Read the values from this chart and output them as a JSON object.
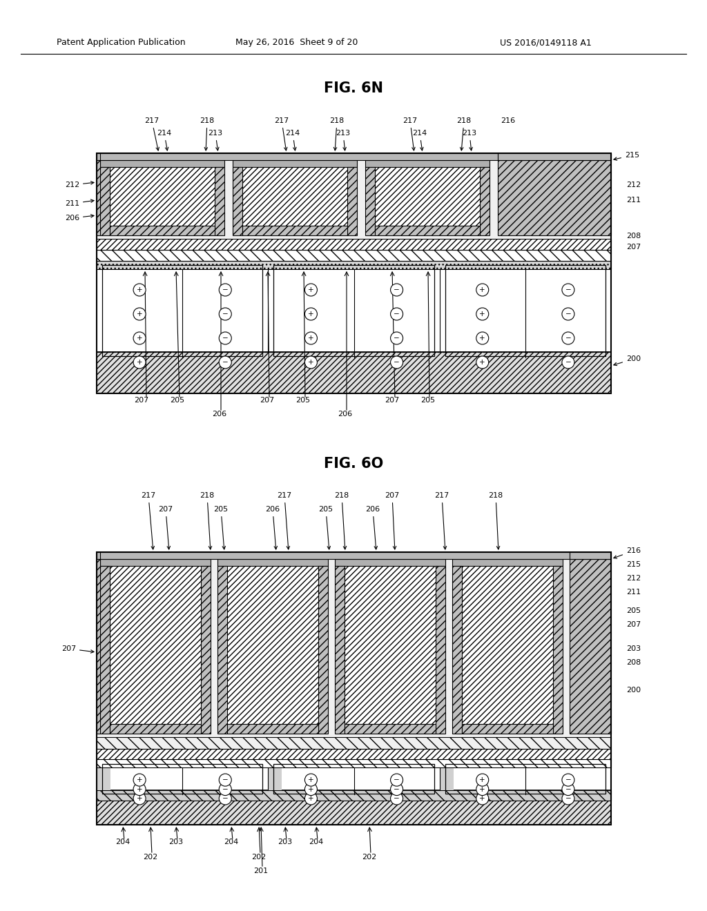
{
  "bg_color": "#ffffff",
  "header_text": "Patent Application Publication",
  "header_date": "May 26, 2016  Sheet 9 of 20",
  "header_patent": "US 2016/0149118 A1",
  "fig1_title": "FIG. 6N",
  "fig2_title": "FIG. 6O"
}
